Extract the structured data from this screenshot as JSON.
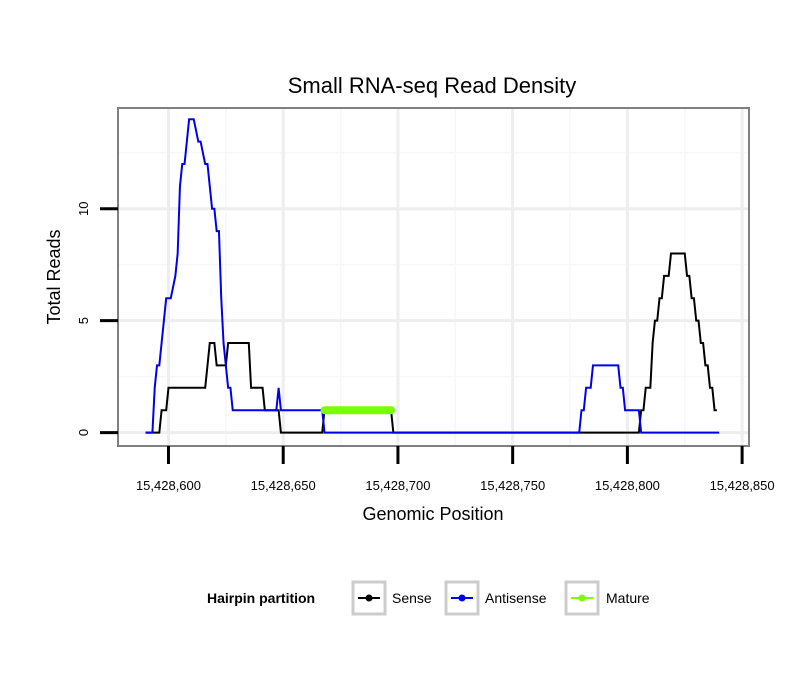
{
  "chart_data": {
    "type": "line",
    "title": "Small RNA-seq Read Density",
    "xlabel": "Genomic Position",
    "ylabel": "Total Reads",
    "xlim": [
      15428578,
      15428853
    ],
    "ylim": [
      -0.6,
      14.5
    ],
    "xticks": [
      15428600,
      15428650,
      15428700,
      15428750,
      15428800,
      15428850
    ],
    "xtick_labels": [
      "15,428,600",
      "15,428,650",
      "15,428,700",
      "15,428,750",
      "15,428,800",
      "15,428,850"
    ],
    "yticks": [
      0,
      5,
      10
    ],
    "ytick_labels": [
      "0",
      "5",
      "10"
    ],
    "grid": true,
    "legend": {
      "title": "Hairpin partition",
      "position": "bottom",
      "entries": [
        {
          "name": "Sense",
          "color": "#000000"
        },
        {
          "name": "Antisense",
          "color": "#0000ee"
        },
        {
          "name": "Mature",
          "color": "#7cfc00"
        }
      ]
    },
    "series": [
      {
        "name": "Sense",
        "color": "#000000",
        "x": [
          15428590,
          15428596,
          15428597,
          15428599,
          15428600,
          15428616,
          15428617,
          15428618,
          15428620,
          15428621,
          15428625,
          15428626,
          15428635,
          15428636,
          15428641,
          15428642,
          15428648,
          15428649,
          15428667,
          15428668,
          15428697,
          15428698,
          15428805,
          15428806,
          15428807,
          15428808,
          15428810,
          15428811,
          15428812,
          15428813,
          15428814,
          15428815,
          15428816,
          15428817,
          15428818,
          15428819,
          15428820,
          15428825,
          15428826,
          15428827,
          15428828,
          15428829,
          15428830,
          15428831,
          15428832,
          15428833,
          15428834,
          15428835,
          15428836,
          15428837,
          15428838,
          15428839
        ],
        "y": [
          0,
          0,
          1,
          1,
          2,
          2,
          3,
          4,
          4,
          3,
          3,
          4,
          4,
          2,
          2,
          1,
          1,
          0,
          0,
          1,
          1,
          0,
          0,
          1,
          1,
          2,
          2,
          4,
          5,
          5,
          6,
          6,
          7,
          7,
          7,
          8,
          8,
          8,
          7,
          7,
          6,
          6,
          5,
          5,
          4,
          4,
          3,
          3,
          2,
          2,
          1,
          1
        ]
      },
      {
        "name": "Antisense",
        "color": "#0000ee",
        "x": [
          15428590,
          15428593,
          15428594,
          15428595,
          15428596,
          15428597,
          15428598,
          15428599,
          15428600,
          15428601,
          15428603,
          15428604,
          15428605,
          15428606,
          15428607,
          15428608,
          15428609,
          15428610,
          15428611,
          15428613,
          15428614,
          15428616,
          15428617,
          15428618,
          15428619,
          15428620,
          15428621,
          15428622,
          15428623,
          15428624,
          15428626,
          15428627,
          15428628,
          15428630,
          15428631,
          15428647,
          15428648,
          15428649,
          15428667,
          15428668,
          15428779,
          15428780,
          15428781,
          15428782,
          15428783,
          15428784,
          15428785,
          15428786,
          15428796,
          15428797,
          15428798,
          15428799,
          15428800,
          15428804,
          15428805,
          15428806,
          15428840
        ],
        "y": [
          0,
          0,
          2,
          3,
          3,
          4,
          5,
          6,
          6,
          6,
          7,
          8,
          11,
          12,
          12,
          13,
          14,
          14,
          14,
          13,
          13,
          12,
          12,
          11,
          10,
          10,
          9,
          9,
          6,
          4,
          2,
          2,
          1,
          1,
          1,
          1,
          2,
          1,
          1,
          0,
          0,
          1,
          1,
          2,
          2,
          2,
          3,
          3,
          3,
          2,
          2,
          1,
          1,
          1,
          1,
          0,
          0
        ]
      },
      {
        "name": "Mature",
        "color": "#7cfc00",
        "x": [
          15428668,
          15428697
        ],
        "y": [
          1,
          1
        ]
      }
    ]
  }
}
